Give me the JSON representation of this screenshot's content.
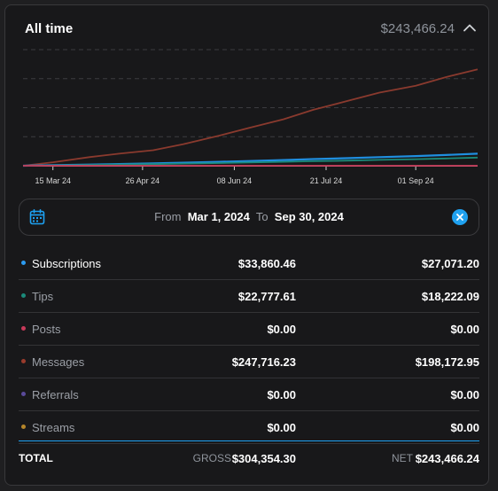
{
  "header": {
    "title": "All time",
    "total": "$243,466.24",
    "collapse_icon": "chevron-up-icon"
  },
  "chart_data": {
    "type": "line",
    "x_ticks": [
      "15 Mar 24",
      "26 Apr 24",
      "08 Jun 24",
      "21 Jul 24",
      "01 Sep 24"
    ],
    "x": [
      "2024-03-01",
      "2024-03-15",
      "2024-04-01",
      "2024-04-15",
      "2024-05-01",
      "2024-05-15",
      "2024-06-01",
      "2024-06-15",
      "2024-07-01",
      "2024-07-15",
      "2024-08-01",
      "2024-08-15",
      "2024-09-01",
      "2024-09-15",
      "2024-09-30"
    ],
    "ylim": [
      0,
      270000
    ],
    "grid": true,
    "series": [
      {
        "color": "#8a3a2e",
        "values": [
          0,
          8000,
          20000,
          28000,
          36000,
          50000,
          70000,
          88000,
          108000,
          130000,
          152000,
          170000,
          186000,
          206000,
          224000
        ]
      },
      {
        "color": "#1f8fe0",
        "values": [
          0,
          1200,
          2600,
          4000,
          5400,
          7000,
          9000,
          11000,
          13200,
          15400,
          17800,
          20000,
          22400,
          25000,
          28000
        ]
      },
      {
        "color": "#1b8a7a",
        "values": [
          0,
          900,
          1800,
          2800,
          3800,
          4900,
          6200,
          7600,
          9000,
          10500,
          12000,
          13600,
          15200,
          17000,
          19000
        ]
      },
      {
        "color": "#c83a5a",
        "values": [
          0,
          0,
          0,
          0,
          0,
          0,
          0,
          0,
          0,
          0,
          0,
          0,
          0,
          0,
          0
        ]
      }
    ]
  },
  "date_range": {
    "from_label": "From",
    "from_value": "Mar 1, 2024",
    "to_label": "To",
    "to_value": "Sep 30, 2024",
    "calendar_icon": "calendar-icon",
    "clear_icon": "close-icon"
  },
  "rows": [
    {
      "label": "Subscriptions",
      "gross": "$33,860.46",
      "net": "$27,071.20",
      "color": "#2c9bf0",
      "active": true
    },
    {
      "label": "Tips",
      "gross": "$22,777.61",
      "net": "$18,222.09",
      "color": "#1b8a7a",
      "active": false
    },
    {
      "label": "Posts",
      "gross": "$0.00",
      "net": "$0.00",
      "color": "#c83a5a",
      "active": false
    },
    {
      "label": "Messages",
      "gross": "$247,716.23",
      "net": "$198,172.95",
      "color": "#9a3b2c",
      "active": false
    },
    {
      "label": "Referrals",
      "gross": "$0.00",
      "net": "$0.00",
      "color": "#5a4a9a",
      "active": false
    },
    {
      "label": "Streams",
      "gross": "$0.00",
      "net": "$0.00",
      "color": "#b5862a",
      "active": false
    }
  ],
  "totals": {
    "label": "TOTAL",
    "gross_label": "GROSS",
    "gross": "$304,354.30",
    "net_label": "NET",
    "net": "$243,466.24"
  }
}
